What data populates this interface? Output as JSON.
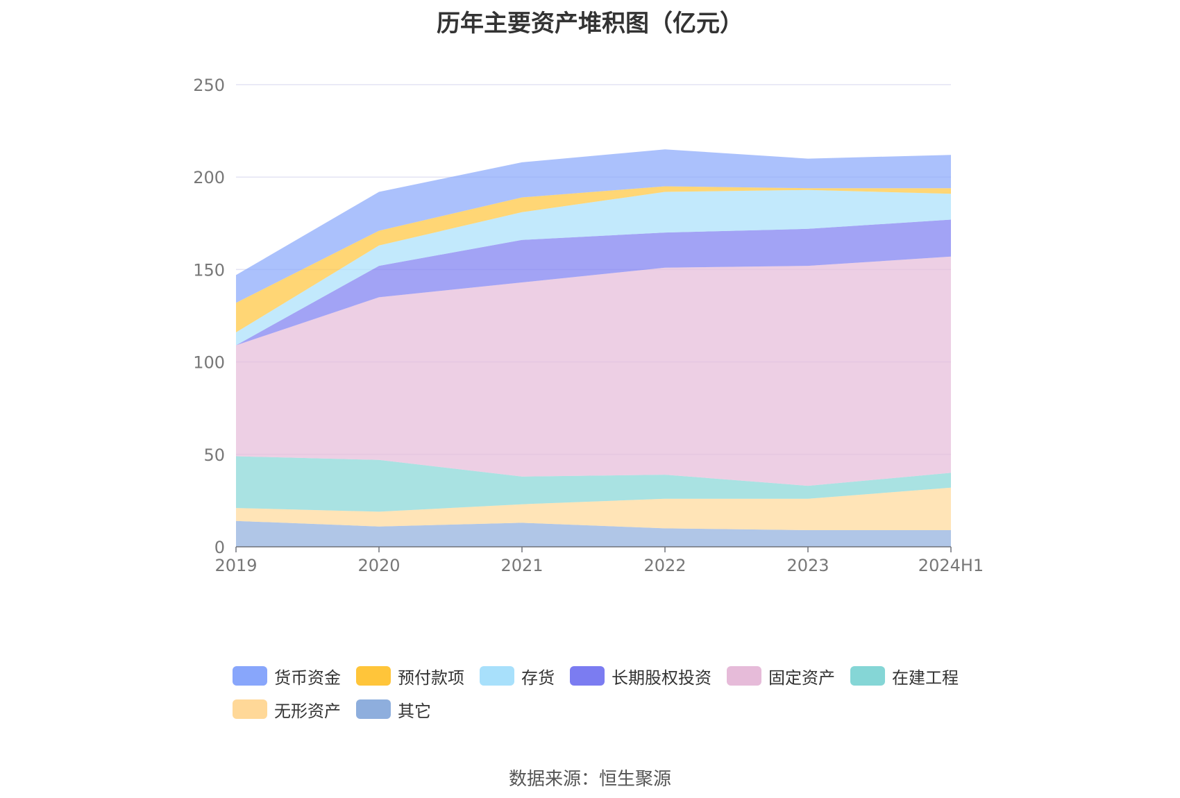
{
  "source_text": "数据来源：恒生聚源",
  "chart_data": {
    "type": "area",
    "stacked": true,
    "title": "历年主要资产堆积图（亿元）",
    "categories": [
      "2019",
      "2020",
      "2021",
      "2022",
      "2023",
      "2024H1"
    ],
    "ylim": [
      0,
      250
    ],
    "yticks": [
      0,
      50,
      100,
      150,
      200,
      250
    ],
    "grid": true,
    "legend_position": "bottom",
    "series": [
      {
        "name": "其它",
        "color": "#8eaedd",
        "values": [
          14,
          11,
          13,
          10,
          9,
          9
        ]
      },
      {
        "name": "无形资产",
        "color": "#ffd898",
        "values": [
          7,
          8,
          10,
          16,
          17,
          23
        ]
      },
      {
        "name": "在建工程",
        "color": "#85d6d6",
        "values": [
          28,
          28,
          15,
          13,
          7,
          8
        ]
      },
      {
        "name": "固定资产",
        "color": "#e6bbd9",
        "values": [
          60,
          88,
          105,
          112,
          119,
          117
        ]
      },
      {
        "name": "长期股权投资",
        "color": "#7b7cf1",
        "values": [
          0,
          17,
          23,
          19,
          20,
          20
        ]
      },
      {
        "name": "存货",
        "color": "#a8e0fb",
        "values": [
          7,
          11,
          15,
          22,
          21,
          14
        ]
      },
      {
        "name": "预付款项",
        "color": "#ffc53a",
        "values": [
          16,
          8,
          8,
          3,
          1,
          3
        ]
      },
      {
        "name": "货币资金",
        "color": "#88a6fb",
        "values": [
          15,
          21,
          19,
          20,
          16,
          18
        ]
      }
    ],
    "legend_order": [
      "货币资金",
      "预付款项",
      "存货",
      "长期股权投资",
      "固定资产",
      "在建工程",
      "无形资产",
      "其它"
    ]
  }
}
